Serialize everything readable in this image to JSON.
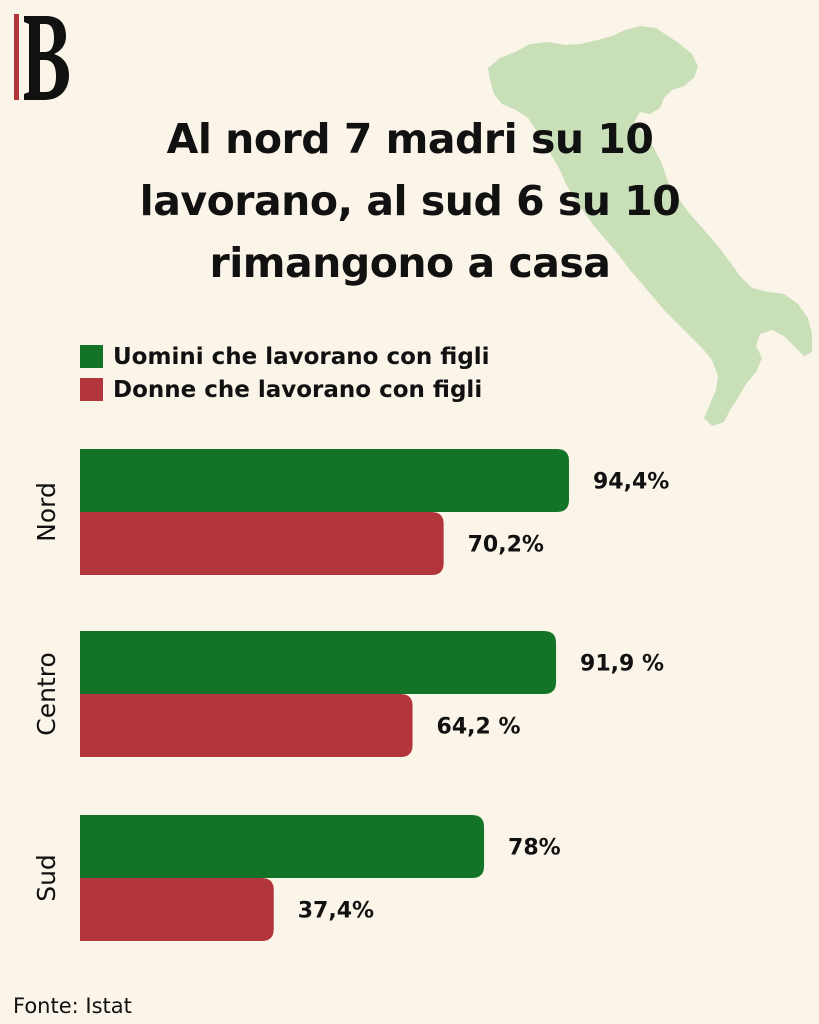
{
  "title": "Al nord 7 madri su 10 lavorano, al sud 6 su 10 rimangono a casa",
  "logo_icon": "b-monogram-logo",
  "background_icon": "italy-map-silhouette",
  "colors": {
    "background": "#fbf4e8",
    "men": "#137427",
    "women": "#b3353c",
    "map": "#c8dfb8",
    "text": "#111111"
  },
  "chart_data": {
    "type": "bar",
    "orientation": "horizontal",
    "categories": [
      "Nord",
      "Centro",
      "Sud"
    ],
    "series": [
      {
        "name": "Uomini che lavorano con figli",
        "values": [
          94.4,
          91.9,
          78
        ],
        "labels": [
          "94,4%",
          "91,9 %",
          "78%"
        ]
      },
      {
        "name": "Donne che lavorano con figli",
        "values": [
          70.2,
          64.2,
          37.4
        ],
        "labels": [
          "70,2%",
          "64,2 %",
          "37,4%"
        ]
      }
    ],
    "xlim": [
      0,
      100
    ],
    "grid": false,
    "legend": "top-left"
  },
  "source": "Fonte: Istat"
}
